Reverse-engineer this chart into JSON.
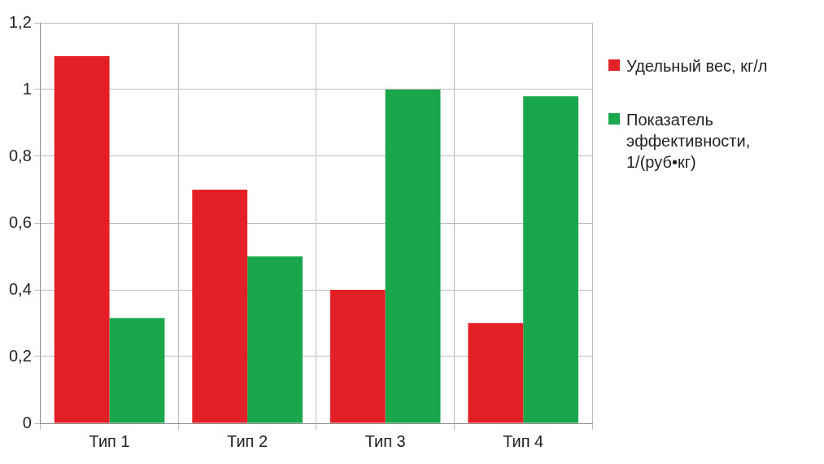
{
  "chart_data": {
    "type": "bar",
    "categories": [
      "Тип 1",
      "Тип 2",
      "Тип 3",
      "Тип 4"
    ],
    "series": [
      {
        "name": "Удельный вес, кг/л",
        "color": "#e32026",
        "values": [
          1.1,
          0.7,
          0.4,
          0.3
        ]
      },
      {
        "name": "Показатель эффективности, 1/(руб•кг)",
        "color": "#1aa64b",
        "values": [
          0.315,
          0.5,
          1.0,
          0.98
        ]
      }
    ],
    "ylim": [
      0,
      1.2
    ],
    "yticks": [
      0,
      {
        "value": 0.2,
        "label": "0,2"
      },
      {
        "value": 0.4,
        "label": "0,4"
      },
      {
        "value": 0.6,
        "label": "0,6"
      },
      {
        "value": 0.8,
        "label": "0,8"
      },
      1,
      {
        "value": 1.2,
        "label": "1,2"
      }
    ],
    "grid": true,
    "legend": "right"
  }
}
